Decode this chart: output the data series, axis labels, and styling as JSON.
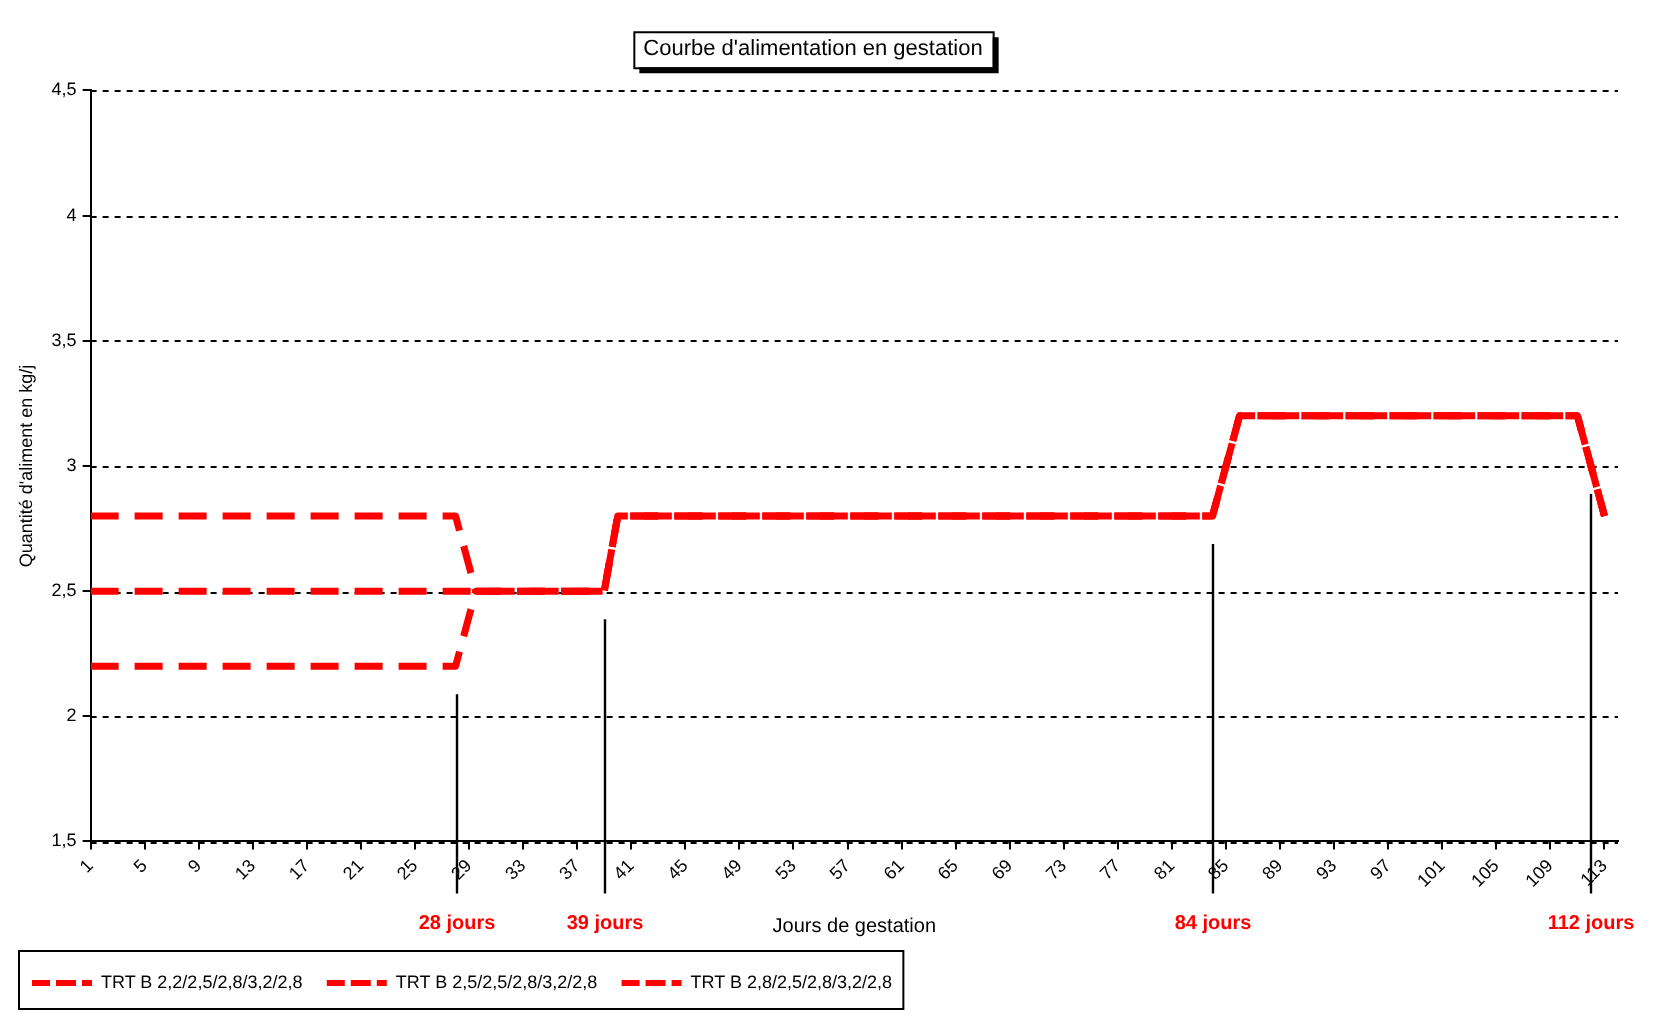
{
  "chart_data": {
    "type": "line",
    "title": "Courbe d'alimentation en gestation",
    "xlabel": "Jours de gestation",
    "ylabel": "Quantité d'aliment en kg/j",
    "xlim": [
      1,
      114
    ],
    "xticks": [
      1,
      5,
      9,
      13,
      17,
      21,
      25,
      29,
      33,
      37,
      41,
      45,
      49,
      53,
      57,
      61,
      65,
      69,
      73,
      77,
      81,
      85,
      89,
      93,
      97,
      101,
      105,
      109,
      113
    ],
    "ylim": [
      1.5,
      4.5
    ],
    "yticks": [
      {
        "value": 1.5,
        "label": "1,5"
      },
      2,
      {
        "value": 2.5,
        "label": "2,5"
      },
      3,
      {
        "value": 3.5,
        "label": "3,5"
      },
      4,
      {
        "value": 4.5,
        "label": "4,5"
      }
    ],
    "series": [
      {
        "name": "TRT B 2,2/2,5/2,8/3,2/2,8",
        "color": "#ff0000",
        "x": [
          1,
          28,
          29.5,
          39,
          40,
          84,
          86,
          111,
          113
        ],
        "values": [
          2.2,
          2.2,
          2.5,
          2.5,
          2.8,
          2.8,
          3.2,
          3.2,
          2.8
        ]
      },
      {
        "name": "TRT B 2,5/2,5/2,8/3,2/2,8",
        "color": "#ff0000",
        "x": [
          1,
          28,
          29.5,
          39,
          40,
          84,
          86,
          111,
          113
        ],
        "values": [
          2.5,
          2.5,
          2.5,
          2.5,
          2.8,
          2.8,
          3.2,
          3.2,
          2.8
        ]
      },
      {
        "name": "TRT B 2,8/2,5/2,8/3,2/2,8",
        "color": "#ff0000",
        "x": [
          1,
          28,
          29.5,
          39,
          40,
          84,
          86,
          111,
          113
        ],
        "values": [
          2.8,
          2.8,
          2.5,
          2.5,
          2.8,
          2.8,
          3.2,
          3.2,
          2.8
        ]
      }
    ],
    "ref_lines": [
      {
        "axis": "x",
        "value": 28,
        "label": "28 jours"
      },
      {
        "axis": "x",
        "value": 39,
        "label": "39 jours"
      },
      {
        "axis": "x",
        "value": 84,
        "label": "84 jours"
      },
      {
        "axis": "x",
        "value": 112,
        "label": "112 jours"
      }
    ],
    "grid": "y",
    "legend": "bottom",
    "marker": "none",
    "line_style": "dashed"
  }
}
